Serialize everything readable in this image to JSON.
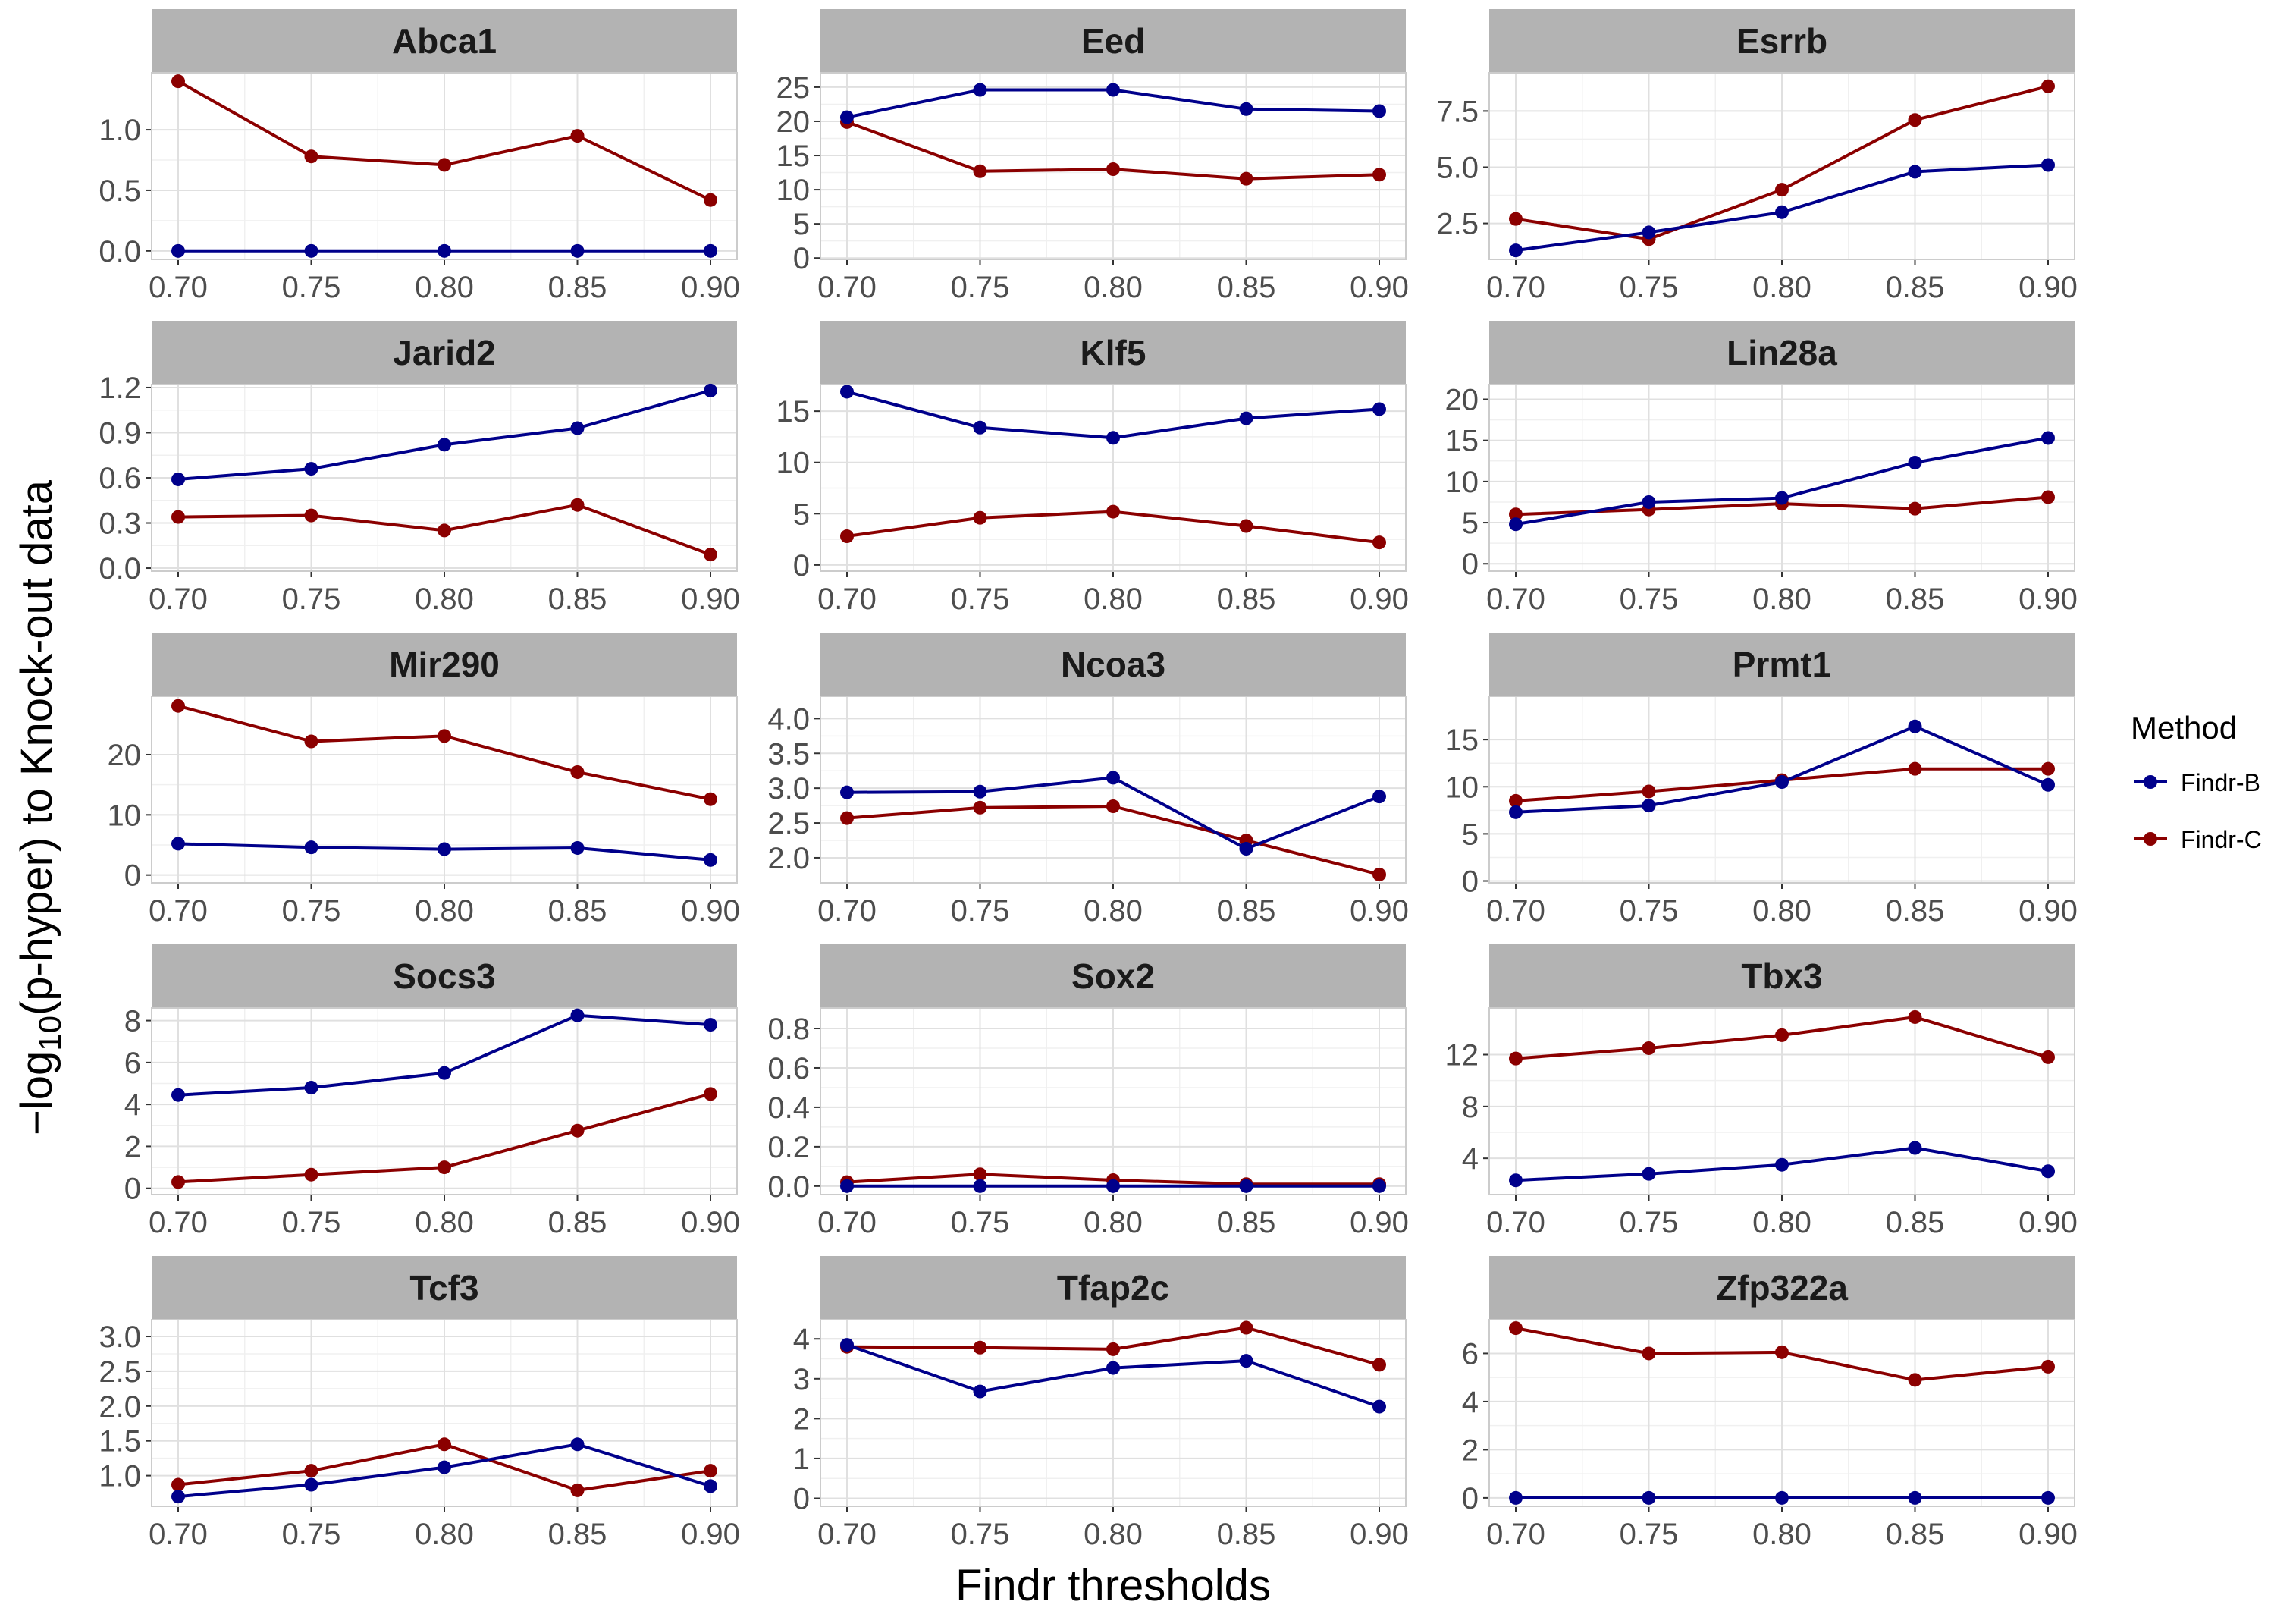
{
  "chart_data": {
    "type": "line",
    "title": "",
    "xlabel": "Findr thresholds",
    "ylabel_prefix": "−log",
    "ylabel_sub": "10",
    "ylabel_suffix": "(p-hyper) to Knock-out data",
    "x": [
      0.7,
      0.75,
      0.8,
      0.85,
      0.9
    ],
    "x_tick_labels": [
      "0.70",
      "0.75",
      "0.80",
      "0.85",
      "0.90"
    ],
    "grid": true,
    "legend": {
      "title": "Method",
      "position": "right",
      "entries": [
        {
          "name": "Findr-B",
          "color": "#00008B"
        },
        {
          "name": "Findr-C",
          "color": "#8B0000"
        }
      ]
    },
    "panels": [
      {
        "name": "Abca1",
        "ylim": [
          -0.07,
          1.47
        ],
        "yticks": [
          0.0,
          0.5,
          1.0
        ],
        "ytick_labels": [
          "0.0",
          "0.5",
          "1.0"
        ],
        "series": [
          {
            "name": "Findr-B",
            "values": [
              0.0,
              0.0,
              0.0,
              0.0,
              0.0
            ]
          },
          {
            "name": "Findr-C",
            "values": [
              1.4,
              0.78,
              0.71,
              0.95,
              0.42
            ]
          }
        ]
      },
      {
        "name": "Eed",
        "ylim": [
          -0.2,
          27.1
        ],
        "yticks": [
          0,
          5,
          10,
          15,
          20,
          25
        ],
        "ytick_labels": [
          "0",
          "5",
          "10",
          "15",
          "20",
          "25"
        ],
        "series": [
          {
            "name": "Findr-B",
            "values": [
              20.6,
              24.6,
              24.6,
              21.8,
              21.5
            ]
          },
          {
            "name": "Findr-C",
            "values": [
              19.9,
              12.7,
              13.0,
              11.6,
              12.2
            ]
          }
        ]
      },
      {
        "name": "Esrrb",
        "ylim": [
          0.9,
          9.2
        ],
        "yticks": [
          2.5,
          5.0,
          7.5
        ],
        "ytick_labels": [
          "2.5",
          "5.0",
          "7.5"
        ],
        "series": [
          {
            "name": "Findr-B",
            "values": [
              1.3,
              2.1,
              3.0,
              4.8,
              5.1
            ]
          },
          {
            "name": "Findr-C",
            "values": [
              2.7,
              1.8,
              4.0,
              7.1,
              8.6
            ]
          }
        ]
      },
      {
        "name": "Jarid2",
        "ylim": [
          -0.02,
          1.22
        ],
        "yticks": [
          0.0,
          0.3,
          0.6,
          0.9,
          1.2
        ],
        "ytick_labels": [
          "0.0",
          "0.3",
          "0.6",
          "0.9",
          "1.2"
        ],
        "series": [
          {
            "name": "Findr-B",
            "values": [
              0.59,
              0.66,
              0.82,
              0.93,
              1.18
            ]
          },
          {
            "name": "Findr-C",
            "values": [
              0.34,
              0.35,
              0.25,
              0.42,
              0.09
            ]
          }
        ]
      },
      {
        "name": "Klf5",
        "ylim": [
          -0.6,
          17.6
        ],
        "yticks": [
          0,
          5,
          10,
          15
        ],
        "ytick_labels": [
          "0",
          "5",
          "10",
          "15"
        ],
        "series": [
          {
            "name": "Findr-B",
            "values": [
              16.9,
              13.4,
              12.4,
              14.3,
              15.2
            ]
          },
          {
            "name": "Findr-C",
            "values": [
              2.8,
              4.6,
              5.2,
              3.8,
              2.2
            ]
          }
        ]
      },
      {
        "name": "Lin28a",
        "ylim": [
          -0.9,
          21.8
        ],
        "yticks": [
          0,
          5,
          10,
          15,
          20
        ],
        "ytick_labels": [
          "0",
          "5",
          "10",
          "15",
          "20"
        ],
        "series": [
          {
            "name": "Findr-B",
            "values": [
              4.8,
              7.5,
              8.0,
              12.3,
              15.3
            ]
          },
          {
            "name": "Findr-C",
            "values": [
              6.0,
              6.6,
              7.3,
              6.7,
              8.1
            ]
          }
        ]
      },
      {
        "name": "Mir290",
        "ylim": [
          -1.3,
          29.7
        ],
        "yticks": [
          0,
          10,
          20
        ],
        "ytick_labels": [
          "0",
          "10",
          "20"
        ],
        "series": [
          {
            "name": "Findr-B",
            "values": [
              5.2,
              4.6,
              4.3,
              4.5,
              2.5
            ]
          },
          {
            "name": "Findr-C",
            "values": [
              28.1,
              22.2,
              23.1,
              17.1,
              12.6
            ]
          }
        ]
      },
      {
        "name": "Ncoa3",
        "ylim": [
          1.64,
          4.32
        ],
        "yticks": [
          2.0,
          2.5,
          3.0,
          3.5,
          4.0
        ],
        "ytick_labels": [
          "2.0",
          "2.5",
          "3.0",
          "3.5",
          "4.0"
        ],
        "series": [
          {
            "name": "Findr-B",
            "values": [
              2.94,
              2.95,
              3.15,
              2.13,
              2.88
            ]
          },
          {
            "name": "Findr-C",
            "values": [
              2.57,
              2.72,
              2.74,
              2.25,
              1.76
            ]
          }
        ]
      },
      {
        "name": "Prmt1",
        "ylim": [
          -0.2,
          19.6
        ],
        "yticks": [
          0,
          5,
          10,
          15
        ],
        "ytick_labels": [
          "0",
          "5",
          "10",
          "15"
        ],
        "series": [
          {
            "name": "Findr-B",
            "values": [
              7.3,
              8.0,
              10.5,
              16.4,
              10.2
            ]
          },
          {
            "name": "Findr-C",
            "values": [
              8.5,
              9.5,
              10.7,
              11.9,
              11.9
            ]
          }
        ]
      },
      {
        "name": "Socs3",
        "ylim": [
          -0.3,
          8.6
        ],
        "yticks": [
          0,
          2,
          4,
          6,
          8
        ],
        "ytick_labels": [
          "0",
          "2",
          "4",
          "6",
          "8"
        ],
        "series": [
          {
            "name": "Findr-B",
            "values": [
              4.45,
              4.8,
              5.5,
              8.25,
              7.8
            ]
          },
          {
            "name": "Findr-C",
            "values": [
              0.3,
              0.65,
              1.0,
              2.75,
              4.5
            ]
          }
        ]
      },
      {
        "name": "Sox2",
        "ylim": [
          -0.043,
          0.904
        ],
        "yticks": [
          0.0,
          0.2,
          0.4,
          0.6,
          0.8
        ],
        "ytick_labels": [
          "0.0",
          "0.2",
          "0.4",
          "0.6",
          "0.8"
        ],
        "series": [
          {
            "name": "Findr-B",
            "values": [
              0.0,
              0.0,
              0.0,
              0.0,
              0.0
            ]
          },
          {
            "name": "Findr-C",
            "values": [
              0.02,
              0.06,
              0.03,
              0.01,
              0.01
            ]
          }
        ]
      },
      {
        "name": "Tbx3",
        "ylim": [
          1.2,
          15.6
        ],
        "yticks": [
          4,
          8,
          12
        ],
        "ytick_labels": [
          "4",
          "8",
          "12"
        ],
        "series": [
          {
            "name": "Findr-B",
            "values": [
              2.3,
              2.8,
              3.5,
              4.8,
              3.0
            ]
          },
          {
            "name": "Findr-C",
            "values": [
              11.7,
              12.5,
              13.5,
              14.9,
              11.8
            ]
          }
        ]
      },
      {
        "name": "Tcf3",
        "ylim": [
          0.56,
          3.24
        ],
        "yticks": [
          1.0,
          1.5,
          2.0,
          2.5,
          3.0
        ],
        "ytick_labels": [
          "1.0",
          "1.5",
          "2.0",
          "2.5",
          "3.0"
        ],
        "series": [
          {
            "name": "Findr-B",
            "values": [
              0.7,
              0.87,
              1.12,
              1.45,
              0.85
            ]
          },
          {
            "name": "Findr-C",
            "values": [
              0.87,
              1.07,
              1.45,
              0.79,
              1.07
            ]
          }
        ]
      },
      {
        "name": "Tfap2c",
        "ylim": [
          -0.2,
          4.48
        ],
        "yticks": [
          0,
          1,
          2,
          3,
          4
        ],
        "ytick_labels": [
          "0",
          "1",
          "2",
          "3",
          "4"
        ],
        "series": [
          {
            "name": "Findr-B",
            "values": [
              3.85,
              2.68,
              3.27,
              3.45,
              2.3
            ]
          },
          {
            "name": "Findr-C",
            "values": [
              3.8,
              3.78,
              3.74,
              4.28,
              3.35
            ]
          }
        ]
      },
      {
        "name": "Zfp322a",
        "ylim": [
          -0.35,
          7.4
        ],
        "yticks": [
          0,
          2,
          4,
          6
        ],
        "ytick_labels": [
          "0",
          "2",
          "4",
          "6"
        ],
        "series": [
          {
            "name": "Findr-B",
            "values": [
              0.0,
              0.0,
              0.0,
              0.0,
              0.0
            ]
          },
          {
            "name": "Findr-C",
            "values": [
              7.05,
              6.0,
              6.05,
              4.9,
              5.45
            ]
          }
        ]
      }
    ]
  }
}
